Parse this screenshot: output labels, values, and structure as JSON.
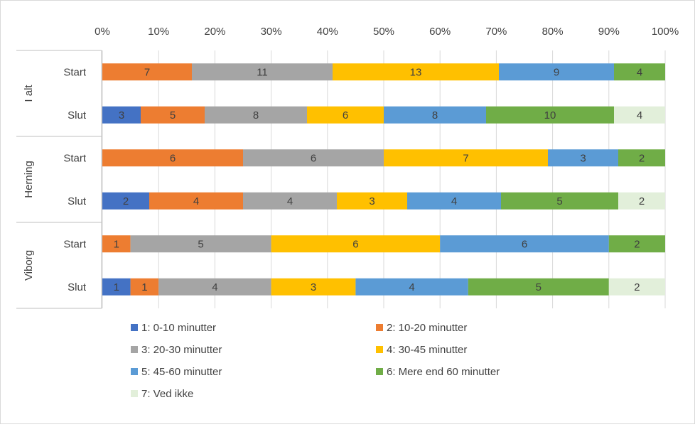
{
  "chart_data": {
    "type": "bar",
    "orientation": "horizontal",
    "stacked": "percent",
    "x_ticks": [
      "0%",
      "10%",
      "20%",
      "30%",
      "40%",
      "50%",
      "60%",
      "70%",
      "80%",
      "90%",
      "100%"
    ],
    "xlim": [
      0,
      1
    ],
    "grid": true,
    "legend_position": "bottom",
    "groups": [
      {
        "label": "I alt",
        "rows": [
          {
            "label": "Start",
            "values": [
              0,
              7,
              11,
              13,
              9,
              4,
              0
            ]
          },
          {
            "label": "Slut",
            "values": [
              3,
              5,
              8,
              6,
              8,
              10,
              4
            ]
          }
        ]
      },
      {
        "label": "Herning",
        "rows": [
          {
            "label": "Start",
            "values": [
              0,
              6,
              6,
              7,
              3,
              2,
              0
            ]
          },
          {
            "label": "Slut",
            "values": [
              2,
              4,
              4,
              3,
              4,
              5,
              2
            ]
          }
        ]
      },
      {
        "label": "Viborg",
        "rows": [
          {
            "label": "Start",
            "values": [
              0,
              1,
              5,
              6,
              6,
              2,
              0
            ]
          },
          {
            "label": "Slut",
            "values": [
              1,
              1,
              4,
              3,
              4,
              5,
              2
            ]
          }
        ]
      }
    ],
    "series": [
      {
        "name": "1: 0-10 minutter",
        "color": "#4472C4"
      },
      {
        "name": "2: 10-20 minutter",
        "color": "#ED7D31"
      },
      {
        "name": "3: 20-30 minutter",
        "color": "#A5A5A5"
      },
      {
        "name": "4: 30-45 minutter",
        "color": "#FFC000"
      },
      {
        "name": "5: 45-60 minutter",
        "color": "#5B9BD5"
      },
      {
        "name": "6: Mere end 60 minutter",
        "color": "#70AD47"
      },
      {
        "name": "7: Ved ikke",
        "color": "#E2EFDA"
      }
    ]
  }
}
